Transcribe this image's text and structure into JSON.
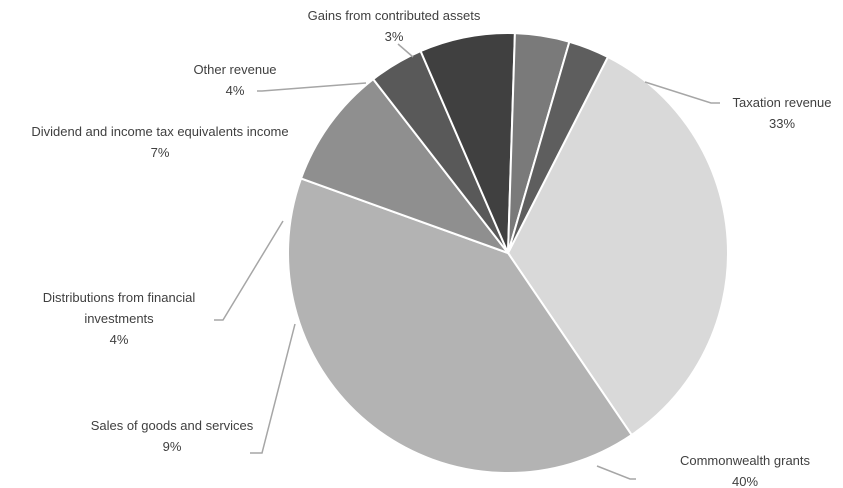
{
  "chart_data": {
    "type": "pie",
    "title": "",
    "start_angle_deg": 27,
    "direction": "clockwise",
    "slices": [
      {
        "label": "Taxation revenue",
        "value": 33,
        "value_label": "33%",
        "color": "#d9d9d9"
      },
      {
        "label": "Commonwealth grants",
        "value": 40,
        "value_label": "40%",
        "color": "#b3b3b3"
      },
      {
        "label": "Sales of goods and services",
        "value": 9,
        "value_label": "9%",
        "color": "#8f8f8f"
      },
      {
        "label": "Distributions from financial investments",
        "label_lines": [
          "Distributions from financial",
          "investments"
        ],
        "value": 4,
        "value_label": "4%",
        "color": "#595959"
      },
      {
        "label": "Dividend and income tax equivalents income",
        "value": 7,
        "value_label": "7%",
        "color": "#404040"
      },
      {
        "label": "Other revenue",
        "value": 4,
        "value_label": "4%",
        "color": "#7a7a7a"
      },
      {
        "label": "Gains from contributed assets",
        "value": 3,
        "value_label": "3%",
        "color": "#5e5e5e"
      }
    ],
    "legend": "none",
    "data_labels": "outside with leader lines"
  }
}
